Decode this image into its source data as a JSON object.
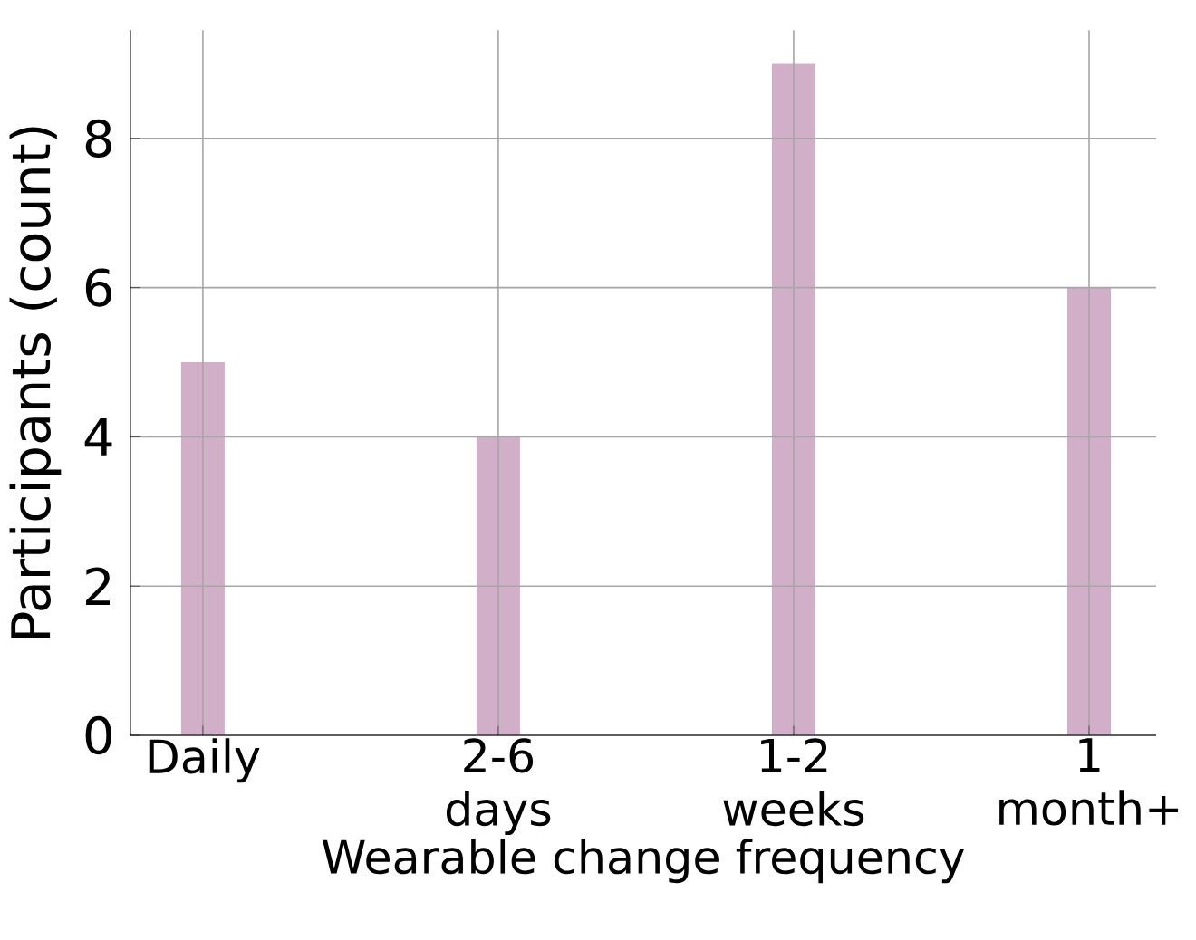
{
  "chart_data": {
    "type": "bar",
    "xlabel": "Wearable change frequency",
    "ylabel": "Participants (count)",
    "categories": [
      "Daily",
      "2-6 days",
      "1-2 weeks",
      "1 month+"
    ],
    "values": [
      5,
      4,
      9,
      6
    ],
    "color": "#d1afc8",
    "ylim": [
      0,
      9.45
    ],
    "yticks": [
      0,
      2,
      4,
      6,
      8
    ],
    "grid": true
  }
}
